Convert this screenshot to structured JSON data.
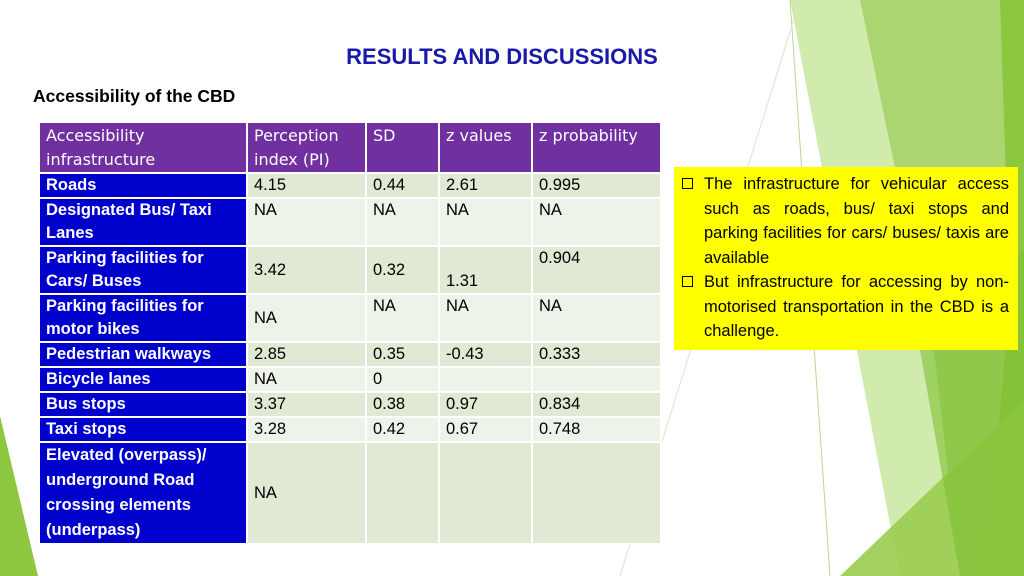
{
  "slide": {
    "title": "RESULTS AND DISCUSSIONS",
    "subtitle": "Accessibility of the CBD"
  },
  "table": {
    "headers": [
      "Accessibility infrastructure",
      "Perception index (PI)",
      "SD",
      "z values",
      "z probability"
    ],
    "rows": [
      {
        "name": "Roads",
        "pi": "4.15",
        "sd": "0.44",
        "z": "2.61",
        "p": "0.995"
      },
      {
        "name": "Designated Bus/ Taxi Lanes",
        "pi": "NA",
        "sd": "NA",
        "z": "NA",
        "p": "NA"
      },
      {
        "name": "Parking facilities for Cars/ Buses",
        "pi": "3.42",
        "sd": "0.32",
        "z": "1.31",
        "p": "0.904"
      },
      {
        "name": "Parking facilities for motor bikes",
        "pi": "NA",
        "sd": "NA",
        "z": "NA",
        "p": "NA"
      },
      {
        "name": "Pedestrian walkways",
        "pi": "2.85",
        "sd": "0.35",
        "z": "-0.43",
        "p": "0.333"
      },
      {
        "name": "Bicycle lanes",
        "pi": "NA",
        "sd": "0",
        "z": "",
        "p": ""
      },
      {
        "name": "Bus stops",
        "pi": "3.37",
        "sd": "0.38",
        "z": "0.97",
        "p": "0.834"
      },
      {
        "name": "Taxi stops",
        "pi": "3.28",
        "sd": "0.42",
        "z": "0.67",
        "p": "0.748"
      },
      {
        "name": "Elevated (overpass)/ underground Road crossing elements (underpass)",
        "pi": "NA",
        "sd": "",
        "z": "",
        "p": ""
      }
    ]
  },
  "callout": {
    "points": [
      "The infrastructure for vehicular access such as roads, bus/ taxi stops and parking facilities for cars/ buses/ taxis are available",
      "But infrastructure for accessing by non-motorised transportation in the CBD is a challenge."
    ],
    "background": "#ffff00"
  },
  "colors": {
    "title": "#1a1aa8",
    "header_bg": "#7030a0",
    "rowhead_bg": "#0000cc",
    "cell_bg": "#dfe9d3",
    "accent_green": "#8dc63f"
  }
}
